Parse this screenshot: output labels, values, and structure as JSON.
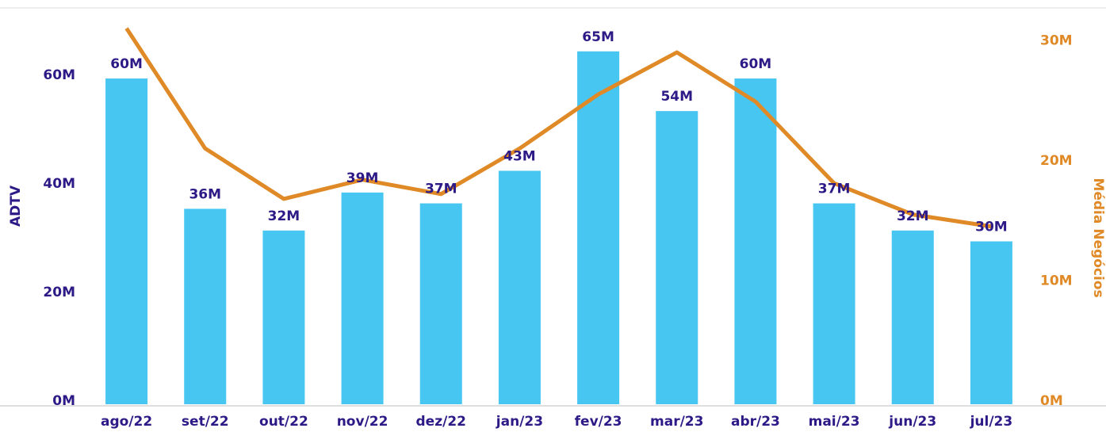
{
  "chart_data": {
    "type": "bar_line",
    "y_label": "ADTV",
    "y2_label": "Média Negócios",
    "categories": [
      "ago/22",
      "set/22",
      "out/22",
      "nov/22",
      "dez/22",
      "jan/23",
      "fev/23",
      "mar/23",
      "abr/23",
      "mai/23",
      "jun/23",
      "jul/23"
    ],
    "series": [
      {
        "name": "ADTV",
        "type": "bar",
        "color": "#47c6f2",
        "values": [
          60,
          36,
          32,
          39,
          37,
          43,
          65,
          54,
          60,
          37,
          32,
          30
        ],
        "value_labels": [
          "60M",
          "36M",
          "32M",
          "39M",
          "37M",
          "43M",
          "65M",
          "54M",
          "60M",
          "37M",
          "32M",
          "30M"
        ]
      },
      {
        "name": "Média Negócios",
        "type": "line",
        "axis": "y2",
        "color": "#e08a27",
        "values": [
          31.3,
          21.3,
          17.1,
          18.7,
          17.5,
          21.3,
          25.8,
          29.3,
          25.2,
          18.4,
          15.8,
          14.8
        ]
      }
    ],
    "ylim": [
      0,
      73
    ],
    "yticks": [
      {
        "value": 0,
        "label": "0M"
      },
      {
        "value": 20,
        "label": "20M"
      },
      {
        "value": 40,
        "label": "40M"
      },
      {
        "value": 60,
        "label": "60M"
      }
    ],
    "y2lim": [
      0,
      33
    ],
    "y2ticks": [
      {
        "value": 0,
        "label": "0M"
      },
      {
        "value": 10,
        "label": "10M"
      },
      {
        "value": 20,
        "label": "20M"
      },
      {
        "value": 30,
        "label": "30M"
      }
    ]
  }
}
